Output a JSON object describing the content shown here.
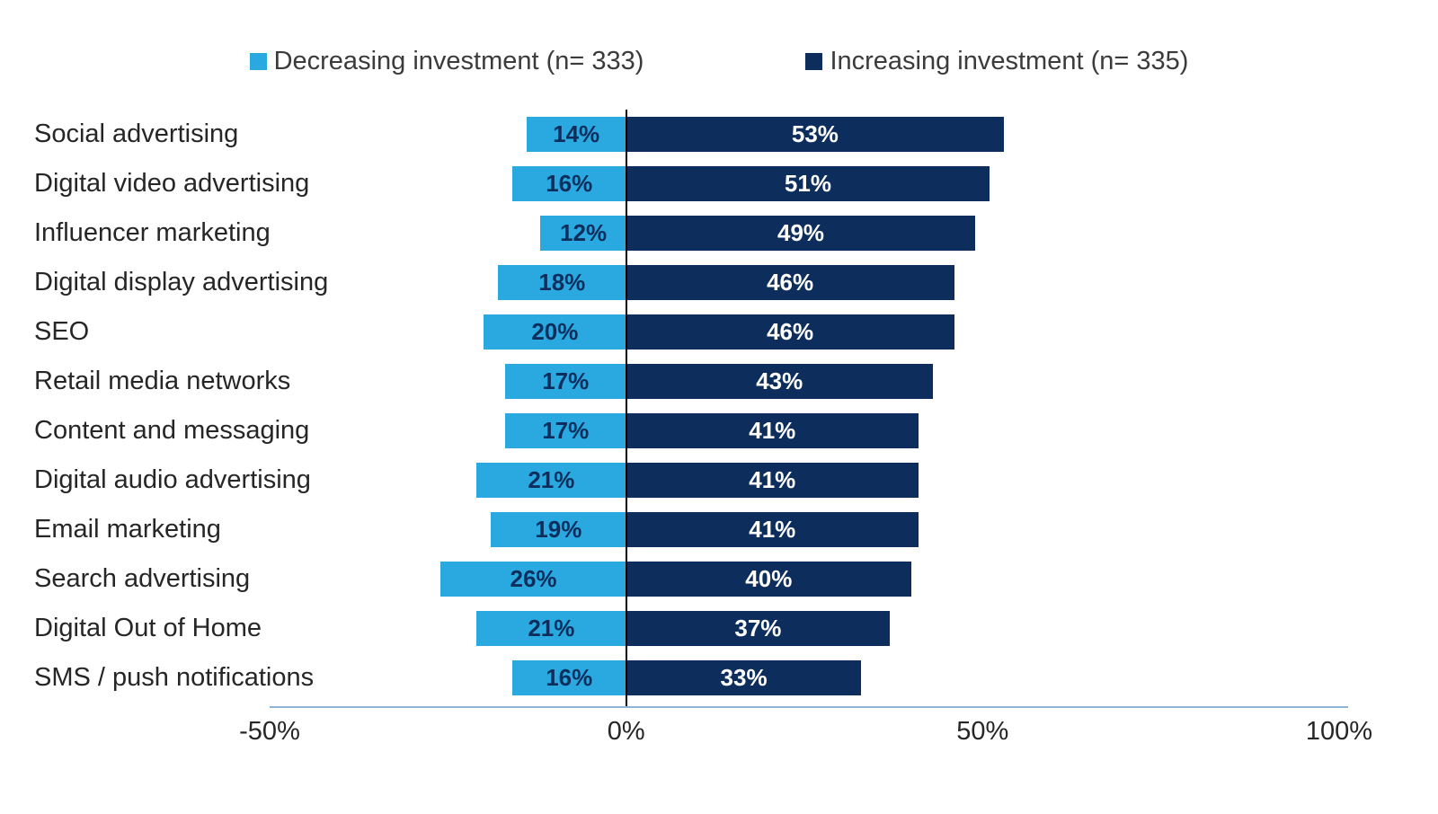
{
  "chart_data": {
    "type": "bar",
    "subtype": "diverging-horizontal",
    "title": "",
    "categories": [
      "Social advertising",
      "Digital video advertising",
      "Influencer marketing",
      "Digital display advertising",
      "SEO",
      "Retail media networks",
      "Content and messaging",
      "Digital audio advertising",
      "Email marketing",
      "Search advertising",
      "Digital Out of Home",
      "SMS / push notifications"
    ],
    "series": [
      {
        "name": "Decreasing investment (n= 333)",
        "direction": "negative",
        "color": "#29A9E0",
        "label_color": "#0D2E5C",
        "values": [
          14,
          16,
          12,
          18,
          20,
          17,
          17,
          21,
          19,
          26,
          21,
          16
        ]
      },
      {
        "name": "Increasing investment (n= 335)",
        "direction": "positive",
        "color": "#0D2E5C",
        "label_color": "#ffffff",
        "values": [
          53,
          51,
          49,
          46,
          46,
          43,
          41,
          41,
          41,
          40,
          37,
          33
        ]
      }
    ],
    "value_suffix": "%",
    "xlim": [
      -50,
      100
    ],
    "x_ticks": [
      {
        "value": -50,
        "label": "-50%"
      },
      {
        "value": 0,
        "label": "0%"
      },
      {
        "value": 50,
        "label": "50%"
      },
      {
        "value": 100,
        "label": "100%"
      }
    ],
    "legend_position": "top",
    "grid": false,
    "axis_line_color": "#8EB4D8",
    "zero_line_color": "#000000"
  }
}
